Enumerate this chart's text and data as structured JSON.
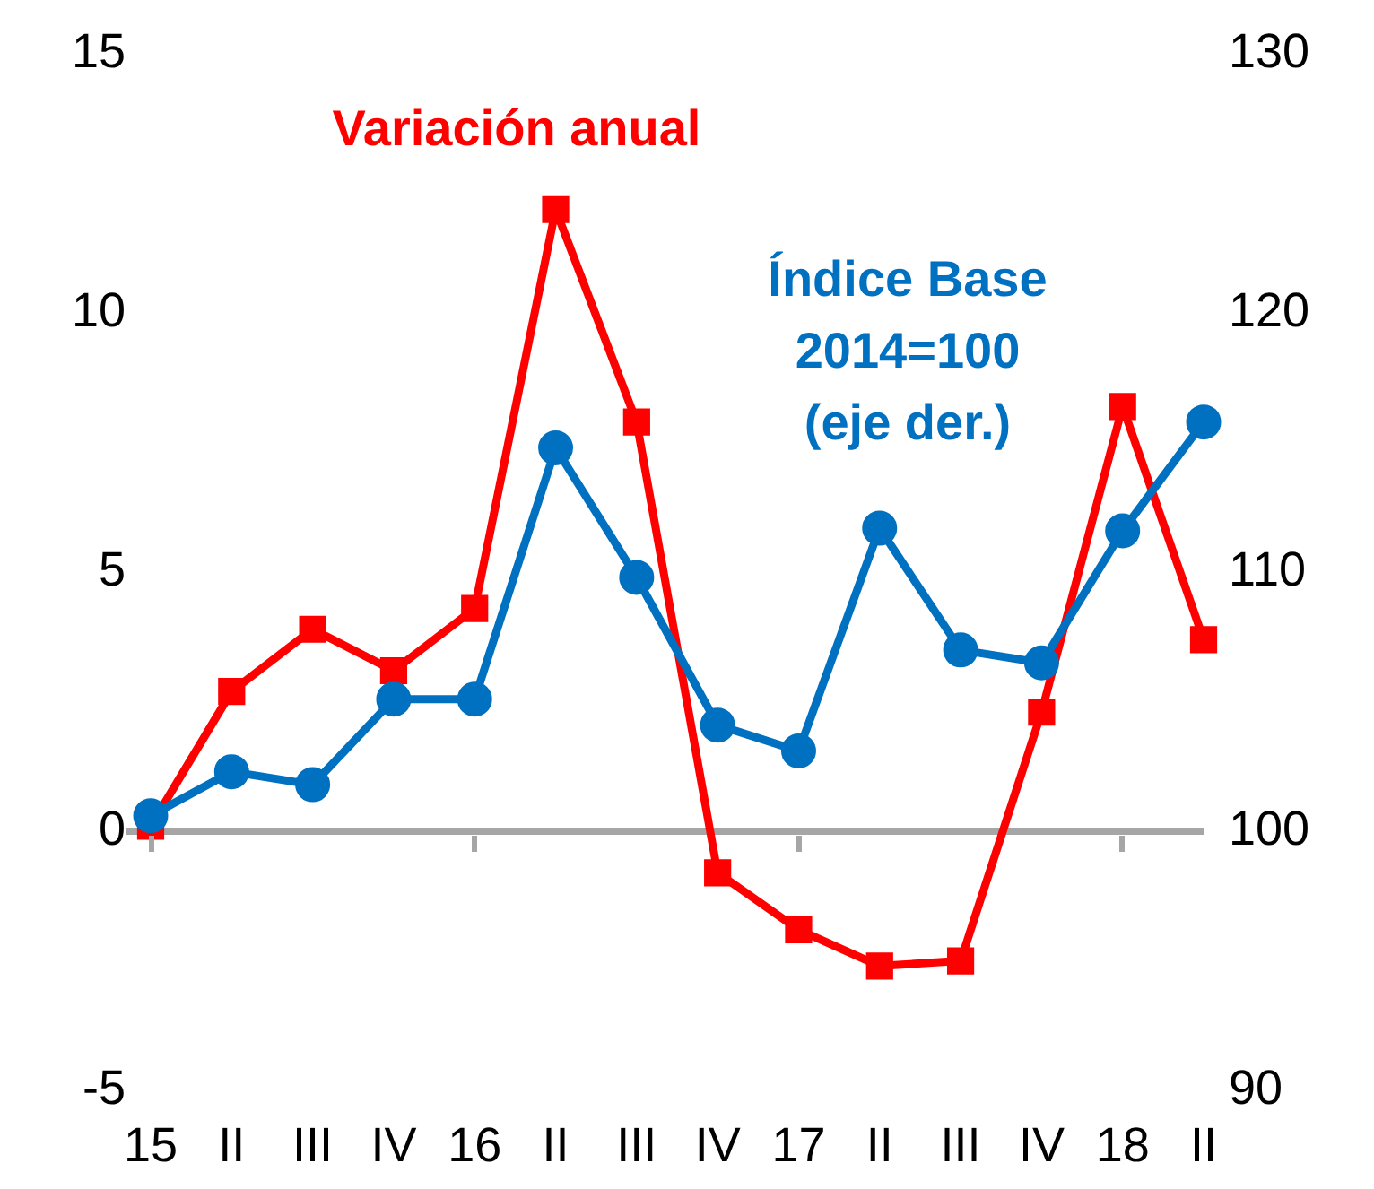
{
  "chart_data": {
    "type": "line",
    "categories": [
      "15",
      "II",
      "III",
      "IV",
      "16",
      "II",
      "III",
      "IV",
      "17",
      "II",
      "III",
      "IV",
      "18",
      "II"
    ],
    "series": [
      {
        "name": "Variación anual",
        "color": "#ff0000",
        "marker": "square",
        "values": [
          0.1,
          2.7,
          3.9,
          3.1,
          4.3,
          12.0,
          7.9,
          -0.8,
          -1.9,
          -2.6,
          -2.5,
          2.3,
          8.2,
          3.7
        ]
      },
      {
        "name": "Índice Base 2014=100 (eje der.)",
        "color": "#0070c0",
        "marker": "circle",
        "axis": "y2",
        "values": [
          100.6,
          102.3,
          101.8,
          105.1,
          105.1,
          114.8,
          109.8,
          104.1,
          103.1,
          111.7,
          107.0,
          106.5,
          111.6,
          115.8
        ]
      }
    ],
    "ylim": [
      -5,
      15
    ],
    "yticks": [
      -5,
      0,
      5,
      10,
      15
    ],
    "y2lim": [
      90,
      130
    ],
    "y2ticks": [
      90,
      100,
      110,
      120,
      130
    ],
    "ref_lines": [
      {
        "axis": "y",
        "value": 0,
        "color": "#a6a6a6"
      }
    ],
    "grid": false,
    "legend": false
  }
}
